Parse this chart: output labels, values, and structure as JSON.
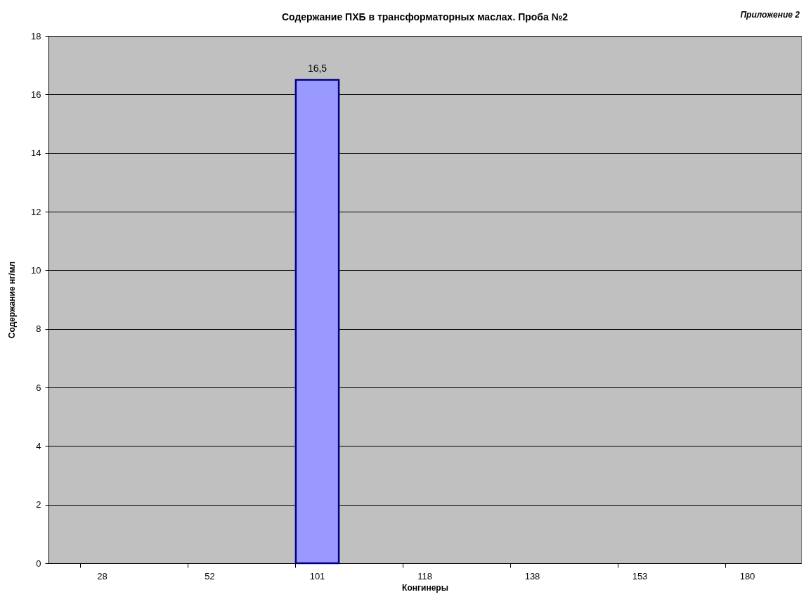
{
  "chart_data": {
    "type": "bar",
    "title": "Содержание ПХБ в трансформаторных маслах. Проба №2",
    "xlabel": "Конгинеры",
    "ylabel": "Содержание нг/мл",
    "annotations": [
      "Приложение 2"
    ],
    "categories": [
      "28",
      "52",
      "101",
      "118",
      "138",
      "153",
      "180"
    ],
    "values": [
      null,
      null,
      16.5,
      null,
      null,
      null,
      null
    ],
    "value_labels": [
      null,
      null,
      "16,5",
      null,
      null,
      null,
      null
    ],
    "color": "#9999ff",
    "ylim": [
      0,
      18
    ],
    "yticks": [
      0,
      2,
      4,
      6,
      8,
      10,
      12,
      14,
      16,
      18
    ],
    "grid": "y"
  }
}
